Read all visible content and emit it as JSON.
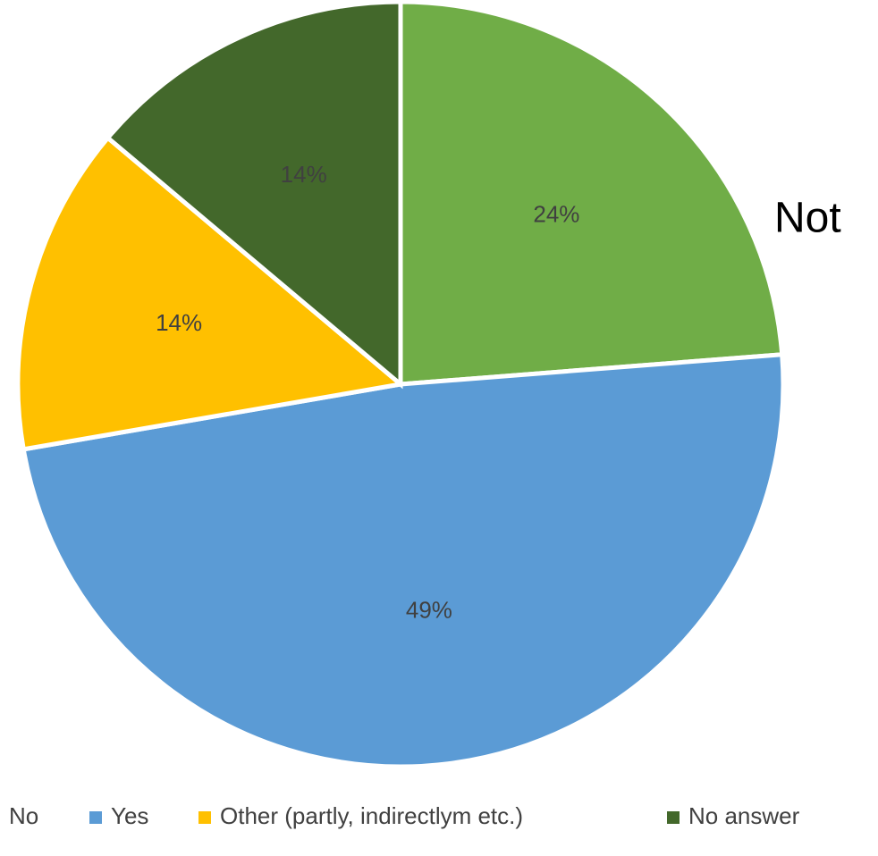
{
  "chart_data": {
    "type": "pie",
    "slices": [
      {
        "label": "No",
        "value": 24,
        "display": "24%",
        "color": "#70ad47"
      },
      {
        "label": "Yes",
        "value": 49,
        "display": "49%",
        "color": "#5b9bd5"
      },
      {
        "label": "Other (partly, indirectlym etc.)",
        "value": 14,
        "display": "14%",
        "color": "#ffc000"
      },
      {
        "label": "No answer",
        "value": 14,
        "display": "14%",
        "color": "#43682b"
      }
    ],
    "side_label": "Not",
    "legend": {
      "placement": "bottom",
      "entries": [
        "No",
        "Yes",
        "Other (partly, indirectlym etc.)",
        "No answer"
      ]
    }
  }
}
